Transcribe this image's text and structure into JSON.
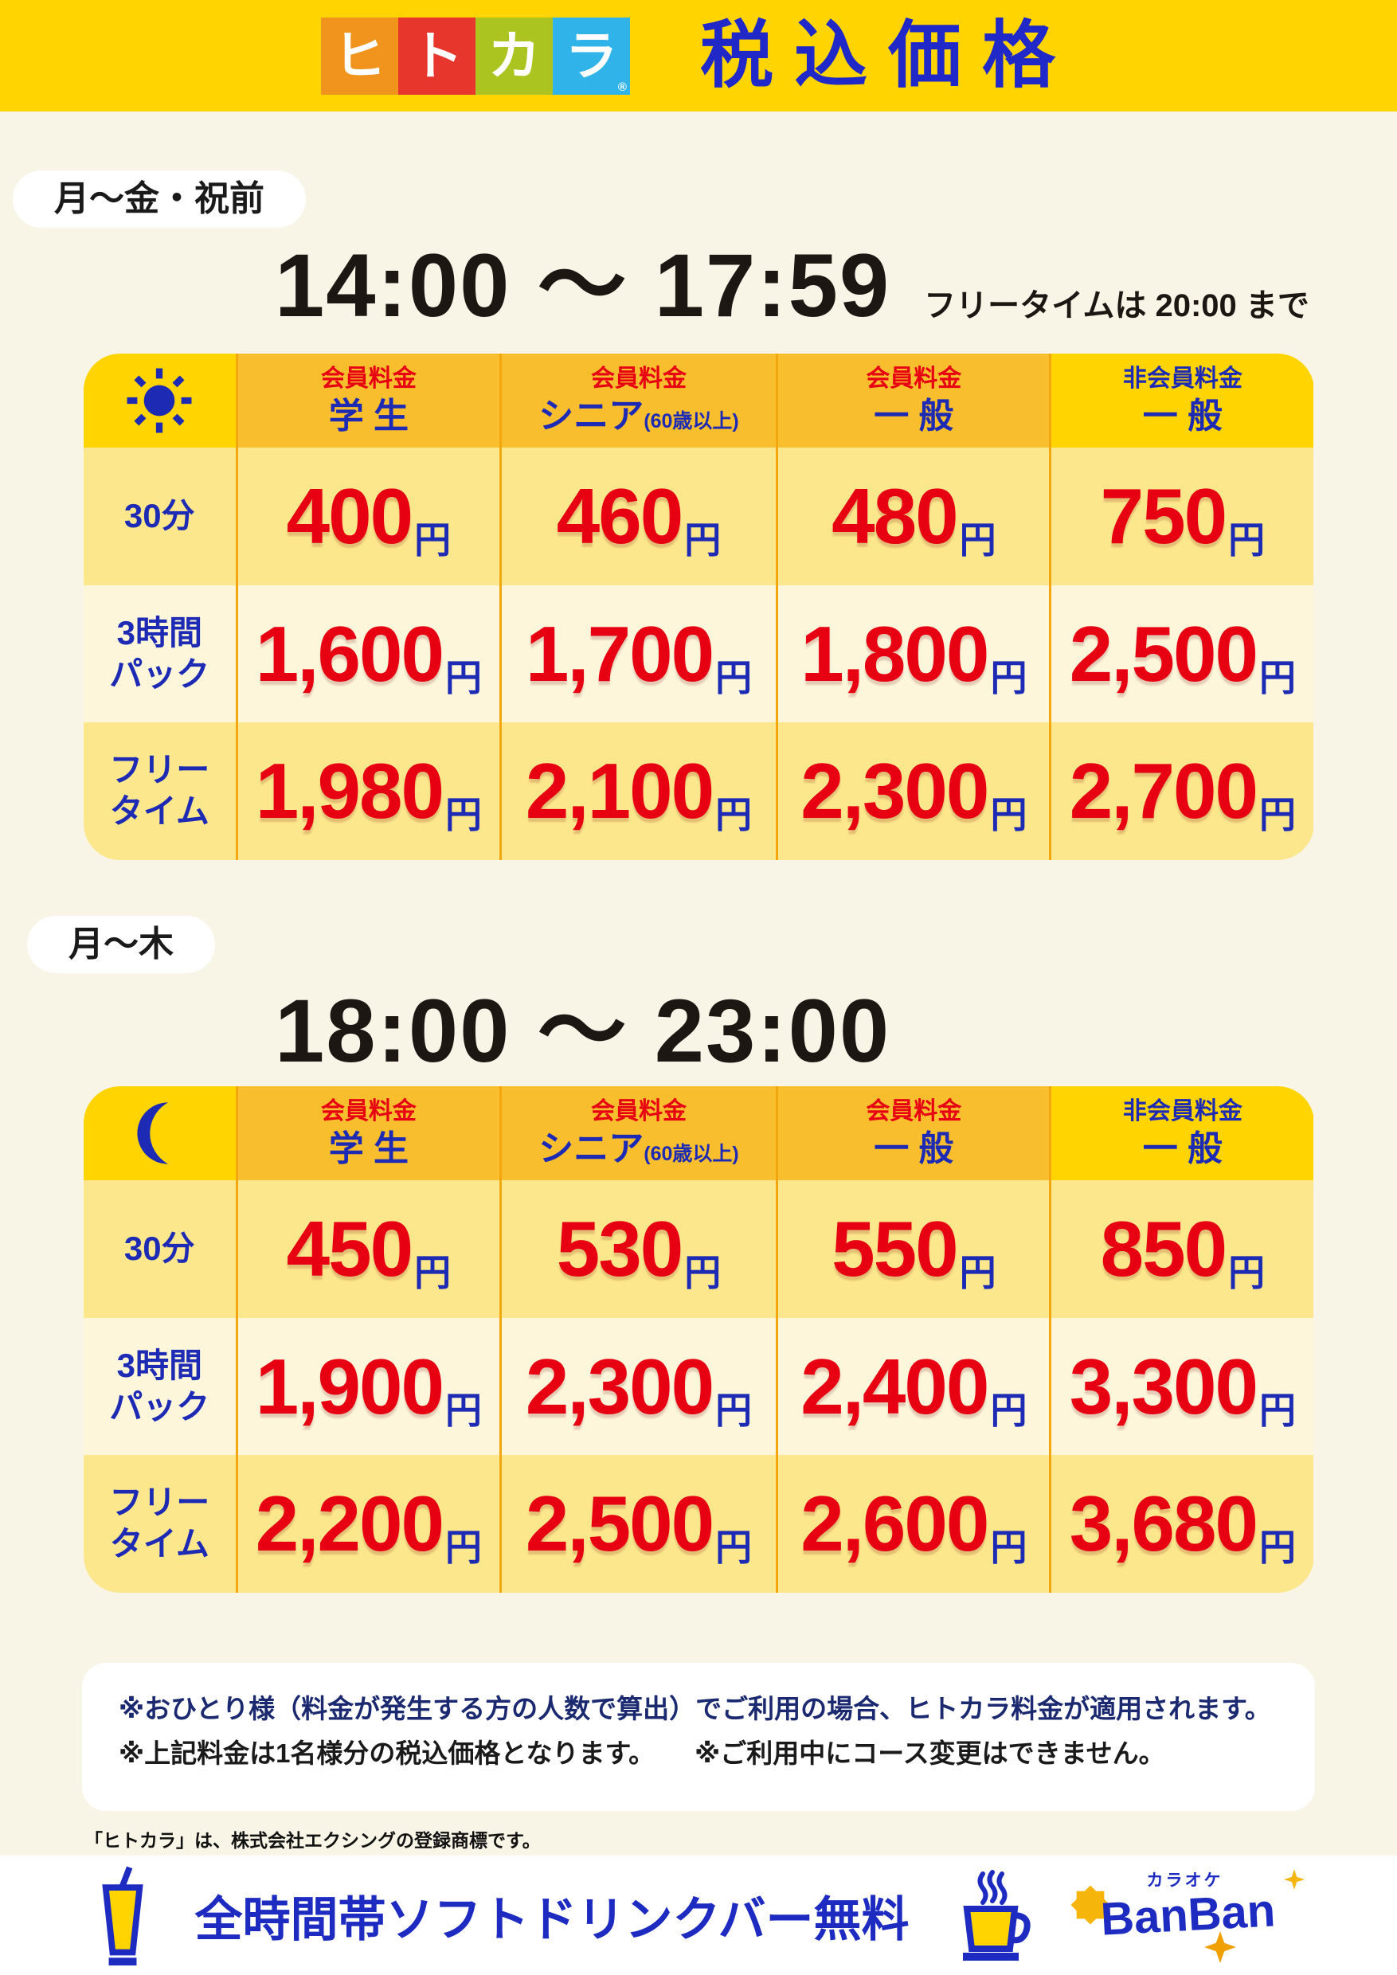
{
  "header": {
    "logo_tiles": [
      {
        "char": "ヒ",
        "color": "#F0941D"
      },
      {
        "char": "ト",
        "color": "#E7372C"
      },
      {
        "char": "カ",
        "color": "#ABC41F"
      },
      {
        "char": "ラ",
        "color": "#30B3E8",
        "mark": "®"
      }
    ],
    "title": "税込価格"
  },
  "yen": "円",
  "sections": [
    {
      "badge": "月〜金・祝前",
      "time": "14:00 〜 17:59",
      "time_note": "フリータイムは 20:00 まで",
      "icon": "sun",
      "columns": [
        {
          "type_label": "会員料金",
          "name": "学 生",
          "suffix": "",
          "member": true
        },
        {
          "type_label": "会員料金",
          "name": "シニア",
          "suffix": "(60歳以上)",
          "member": true
        },
        {
          "type_label": "会員料金",
          "name": "一 般",
          "suffix": "",
          "member": true
        },
        {
          "type_label": "非会員料金",
          "name": "一 般",
          "suffix": "",
          "member": false
        }
      ],
      "rows": [
        {
          "label_lines": [
            "30分"
          ],
          "prices": [
            "400",
            "460",
            "480",
            "750"
          ]
        },
        {
          "label_lines": [
            "3時間",
            "パック"
          ],
          "prices": [
            "1,600",
            "1,700",
            "1,800",
            "2,500"
          ]
        },
        {
          "label_lines": [
            "フリー",
            "タイム"
          ],
          "prices": [
            "1,980",
            "2,100",
            "2,300",
            "2,700"
          ]
        }
      ]
    },
    {
      "badge": "月〜木",
      "time": "18:00 〜 23:00",
      "time_note": "",
      "icon": "moon",
      "columns": [
        {
          "type_label": "会員料金",
          "name": "学 生",
          "suffix": "",
          "member": true
        },
        {
          "type_label": "会員料金",
          "name": "シニア",
          "suffix": "(60歳以上)",
          "member": true
        },
        {
          "type_label": "会員料金",
          "name": "一 般",
          "suffix": "",
          "member": true
        },
        {
          "type_label": "非会員料金",
          "name": "一 般",
          "suffix": "",
          "member": false
        }
      ],
      "rows": [
        {
          "label_lines": [
            "30分"
          ],
          "prices": [
            "450",
            "530",
            "550",
            "850"
          ]
        },
        {
          "label_lines": [
            "3時間",
            "パック"
          ],
          "prices": [
            "1,900",
            "2,300",
            "2,400",
            "3,300"
          ]
        },
        {
          "label_lines": [
            "フリー",
            "タイム"
          ],
          "prices": [
            "2,200",
            "2,500",
            "2,600",
            "3,680"
          ]
        }
      ]
    }
  ],
  "notes": {
    "line1": "※おひとり様（料金が発生する方の人数で算出）でご利用の場合、ヒトカラ料金が適用されます。",
    "line2a": "※上記料金は1名様分の税込価格となります。",
    "line2b": "※ご利用中にコース変更はできません。"
  },
  "trademark": "「ヒトカラ」は、株式会社エクシングの登録商標です。",
  "footer": {
    "message": "全時間帯ソフトドリンクバー無料",
    "brand_small": "カラオケ",
    "brand": "BanBan"
  },
  "colors": {
    "banner_yellow": "#FFD400",
    "page_cream": "#F8F4E6",
    "title_blue": "#2028C8",
    "header_amber": "#F8BE2E",
    "row_yellow": "#FDE78D",
    "row_cream": "#FDF6DB",
    "price_red": "#E60012",
    "label_blue": "#1D2BB4",
    "note_navy": "#1B2A70",
    "grid_line_orange": "#F2A70E",
    "star_yellow": "#F5B50A"
  }
}
